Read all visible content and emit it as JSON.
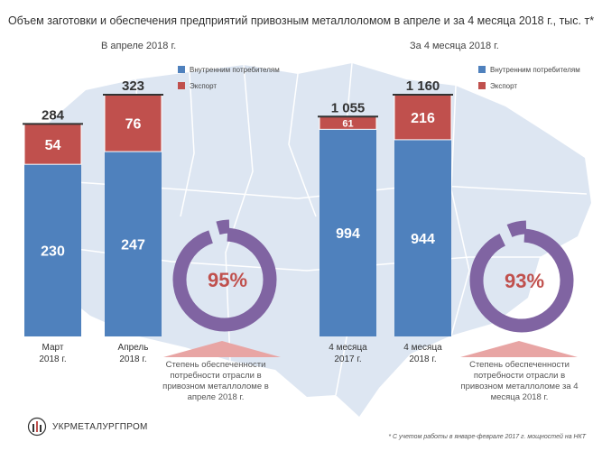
{
  "title": "Объем заготовки и обеспечения предприятий привозным металлоломом в апреле и за 4 месяца 2018 г., тыс. т*",
  "colors": {
    "domestic": "#4f81bd",
    "export": "#c0504d",
    "ring": "#8064a2",
    "map": "#dde6f2",
    "map_line": "#ffffff",
    "triangle": "#e8a5a4"
  },
  "chart_data": [
    {
      "type": "bar",
      "stacked": true,
      "title": "В апреле 2018 г.",
      "categories": [
        "Март\n2018 г.",
        "Апрель\n2018 г."
      ],
      "series": [
        {
          "name": "Внутренним потребителям",
          "values": [
            230,
            247
          ]
        },
        {
          "name": "Экспорт",
          "values": [
            54,
            76
          ]
        }
      ],
      "total_labels": [
        "284",
        "323"
      ],
      "ylim": [
        0,
        323
      ]
    },
    {
      "type": "bar",
      "stacked": true,
      "title": "За 4 месяца 2018 г.",
      "categories": [
        "4 месяца\n2017 г.",
        "4 месяца\n2018 г."
      ],
      "series": [
        {
          "name": "Внутренним потребителям",
          "values": [
            994,
            944
          ]
        },
        {
          "name": "Экспорт",
          "values": [
            61,
            216
          ]
        }
      ],
      "total_labels": [
        "1 055",
        "1 160"
      ],
      "ylim": [
        0,
        1160
      ]
    }
  ],
  "rings": [
    {
      "label": "95%",
      "value": 95,
      "caption": "Степень обеспеченности потребности отрасли в привозном металлоломе в апреле 2018 г."
    },
    {
      "label": "93%",
      "value": 93,
      "caption": "Степень обеспеченности потребности отрасли в привозном металлоломе за 4 месяца 2018 г."
    }
  ],
  "footnote": "* С учетом работы в январе-феврале 2017 г. мощностей на НКТ",
  "logo": "УКРМЕТАЛУРГПРОМ"
}
